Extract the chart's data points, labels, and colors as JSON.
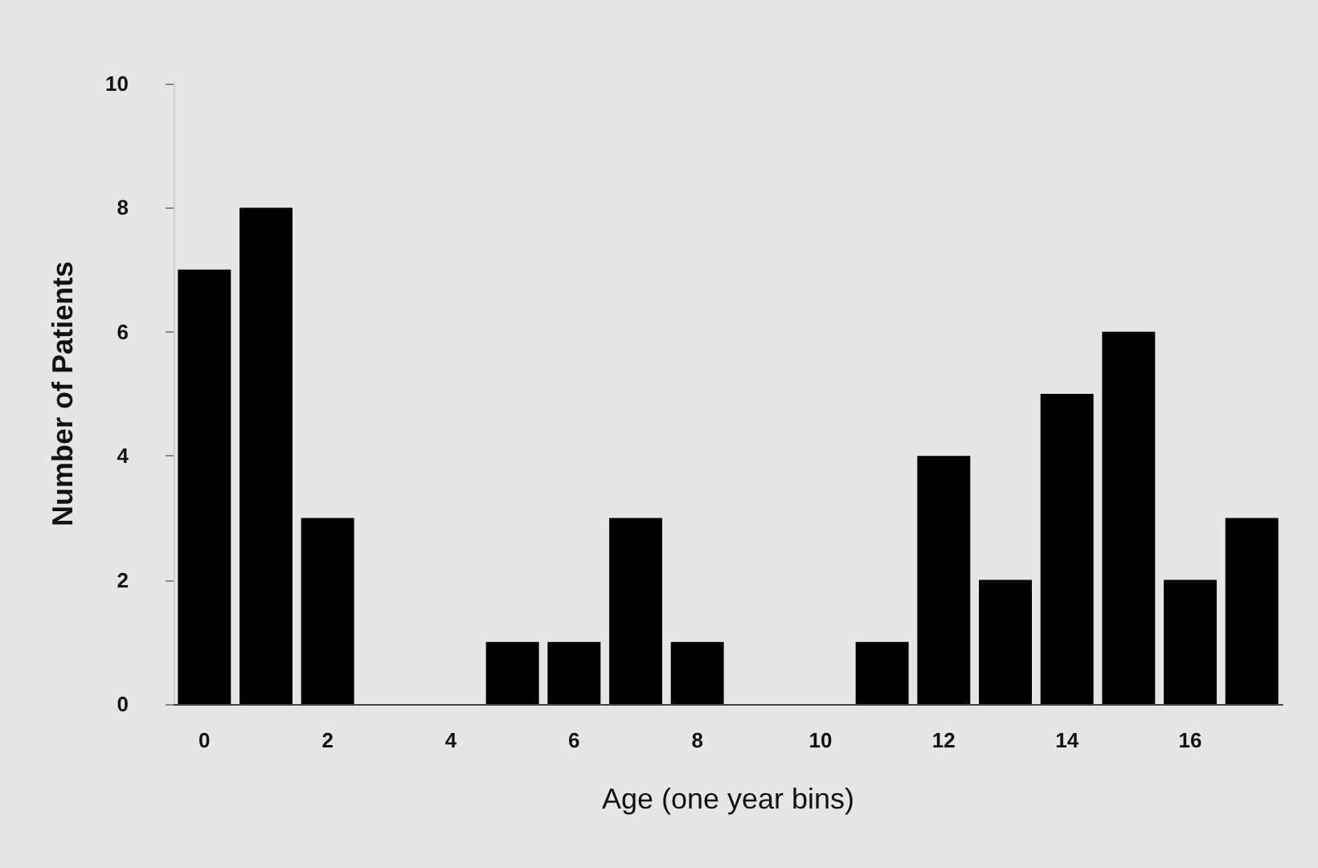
{
  "chart_data": {
    "type": "bar",
    "xlabel": "Age (one year bins)",
    "ylabel": "Number of Patients",
    "categories": [
      "0",
      null,
      "2",
      null,
      "4",
      null,
      "6",
      null,
      "8",
      null,
      "10",
      null,
      "12",
      null,
      "14",
      null,
      "16",
      null
    ],
    "values": [
      7,
      8,
      3,
      0,
      0,
      1,
      1,
      3,
      1,
      0,
      0,
      1,
      4,
      2,
      5,
      6,
      2,
      3
    ],
    "color": "#000000",
    "ylim": [
      0,
      10
    ],
    "yticks": [
      0,
      2,
      4,
      6,
      8,
      10
    ],
    "grid": false
  }
}
